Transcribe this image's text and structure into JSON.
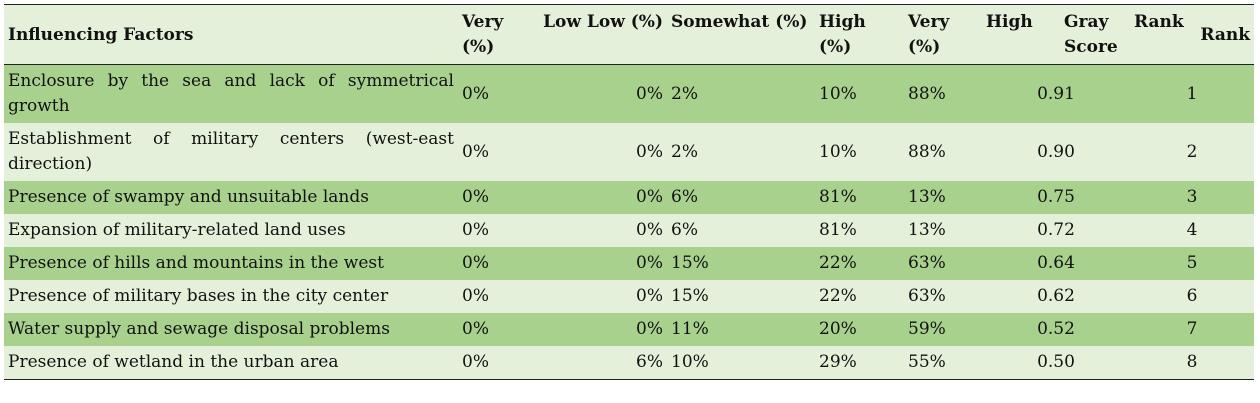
{
  "table": {
    "headers": {
      "factor": "Influencing Factors",
      "very_low": "Very (%)",
      "low": "Low Low (%)",
      "somewhat": "Somewhat (%)",
      "high": "High (%)",
      "very_high": "Very (%)",
      "gray_score_a": "High",
      "gray_score_b": "Gray Score",
      "rank_a": "Rank",
      "rank_b": "Rank"
    },
    "rows": [
      {
        "factor": "Enclosure by the sea and lack of symmetrical growth",
        "very_low": "0%",
        "low": "0%",
        "somewhat": "2%",
        "high": "10%",
        "very_high": "88%",
        "gray": "0.91",
        "rank": "1"
      },
      {
        "factor": "Establishment of military centers (west-east direction)",
        "very_low": "0%",
        "low": "0%",
        "somewhat": "2%",
        "high": "10%",
        "very_high": "88%",
        "gray": "0.90",
        "rank": "2"
      },
      {
        "factor": "Presence of swampy and unsuitable lands",
        "very_low": "0%",
        "low": "0%",
        "somewhat": "6%",
        "high": "81%",
        "very_high": "13%",
        "gray": "0.75",
        "rank": "3"
      },
      {
        "factor": "Expansion of military-related land uses",
        "very_low": "0%",
        "low": "0%",
        "somewhat": "6%",
        "high": "81%",
        "very_high": "13%",
        "gray": "0.72",
        "rank": "4"
      },
      {
        "factor": "Presence of hills and mountains in the west",
        "very_low": "0%",
        "low": "0%",
        "somewhat": "15%",
        "high": "22%",
        "very_high": "63%",
        "gray": "0.64",
        "rank": "5"
      },
      {
        "factor": "Presence of military bases in the city center",
        "very_low": "0%",
        "low": "0%",
        "somewhat": "15%",
        "high": "22%",
        "very_high": "63%",
        "gray": "0.62",
        "rank": "6"
      },
      {
        "factor": "Water supply and sewage disposal problems",
        "very_low": "0%",
        "low": "0%",
        "somewhat": "11%",
        "high": "20%",
        "very_high": "59%",
        "gray": "0.52",
        "rank": "7"
      },
      {
        "factor": "Presence of wetland in the urban area",
        "very_low": "0%",
        "low": "6%",
        "somewhat": "10%",
        "high": "29%",
        "very_high": "55%",
        "gray": "0.50",
        "rank": "8"
      }
    ]
  },
  "colors": {
    "dark_row": "#a9d18e",
    "light_row": "#e5f0da",
    "rule": "#222222"
  }
}
